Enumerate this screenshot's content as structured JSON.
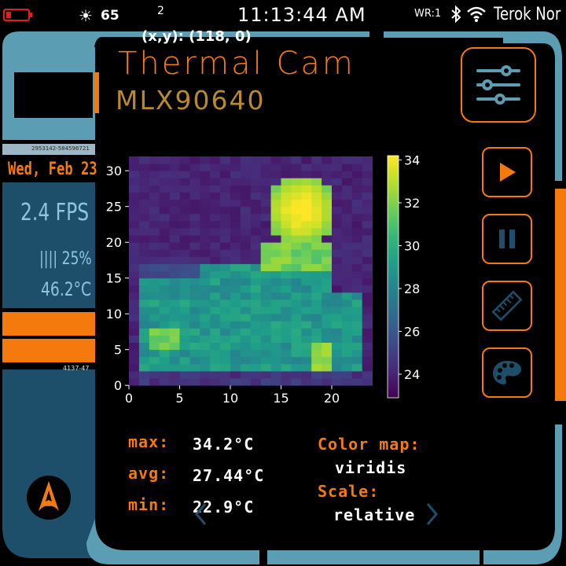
{
  "status_bar": {
    "battery_icon": "battery-low-icon",
    "brightness": "65",
    "notification_count": "2",
    "time": "11:13:44 AM",
    "wr_label": "WR:1",
    "bluetooth_icon": "bluetooth-icon",
    "wifi_icon": "wifi-icon",
    "device_name": "Terok Nor"
  },
  "header": {
    "coords": "(x,y): (118, 0)",
    "title": "Thermal Cam",
    "subtitle": "MLX90640"
  },
  "side_panel": {
    "serial_top": "2953142-584596721",
    "date": "Wed, Feb 23",
    "fps": "2.4 FPS",
    "cpu": "|||| 25%",
    "temperature": "46.2°C",
    "serial_bottom": "4137-47",
    "logo_icon": "starfleet-delta-icon"
  },
  "stats": {
    "max_label": "max:",
    "max_value": "34.2°C",
    "avg_label": "avg:",
    "avg_value": "27.44°C",
    "min_label": "min:",
    "min_value": "22.9°C",
    "color_map_label": "Color map:",
    "color_map_value": "viridis",
    "scale_label": "Scale:",
    "scale_value": "relative"
  },
  "buttons": {
    "settings_icon": "sliders-icon",
    "play_icon": "play-icon",
    "pause_icon": "pause-icon",
    "measure_icon": "ruler-icon",
    "palette_icon": "palette-icon"
  },
  "colors": {
    "accent_orange": "#f57a0e",
    "frame_blue": "#5b9eb4",
    "panel_blue": "#1e4f6a"
  },
  "chart_data": {
    "type": "heatmap",
    "colormap": "viridis",
    "xlim": [
      0,
      24
    ],
    "ylim": [
      0,
      32
    ],
    "xticks": [
      0,
      5,
      10,
      15,
      20
    ],
    "yticks": [
      0,
      5,
      10,
      15,
      20,
      25,
      30
    ],
    "colorbar_range": [
      22.9,
      34.2
    ],
    "colorbar_ticks": [
      24,
      26,
      28,
      30,
      32,
      34
    ],
    "grid_shape": [
      32,
      24
    ],
    "scene_summary": {
      "background_min": 22.9,
      "head_peak": 34.2,
      "body_level": 29.5
    }
  }
}
